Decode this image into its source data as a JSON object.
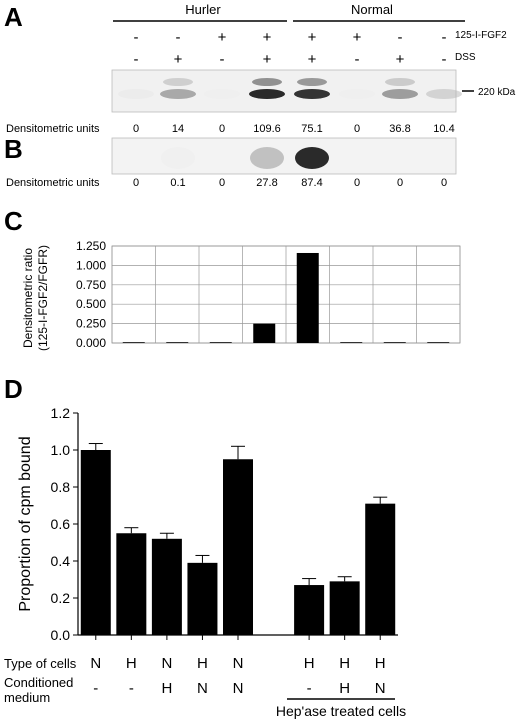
{
  "panelA": {
    "letter": "A",
    "group_hurler": "Hurler",
    "group_normal": "Normal",
    "row_fgf2": [
      "-",
      "-",
      "+",
      "+",
      "+",
      "+",
      "-",
      "-"
    ],
    "row_dss": [
      "-",
      "+",
      "-",
      "+",
      "+",
      "-",
      "+",
      "-"
    ],
    "label_fgf2": "125-I-FGF2",
    "label_dss": "DSS",
    "band_label": "220 kDa",
    "densitometric_label": "Densitometric units",
    "densitometric_values": [
      "0",
      "14",
      "0",
      "109.6",
      "75.1",
      "0",
      "36.8",
      "10.4"
    ],
    "band_intensity": [
      0.05,
      0.45,
      0.02,
      0.9,
      0.85,
      0.02,
      0.5,
      0.25
    ]
  },
  "panelB": {
    "letter": "B",
    "densitometric_label": "Densitometric units",
    "densitometric_values": [
      "0",
      "0.1",
      "0",
      "27.8",
      "87.4",
      "0",
      "0",
      "0"
    ],
    "band_intensity": [
      0,
      0.02,
      0,
      0.35,
      0.9,
      0,
      0,
      0
    ]
  },
  "panelC": {
    "letter": "C"
  },
  "panelD": {
    "letter": "D"
  },
  "chart_data": [
    {
      "type": "bar",
      "ylabel": "Densitometric ratio (125-I-FGF2/FGFR)",
      "ylabel_lines": [
        "Densitometric ratio",
        "(125-I-FGF2/FGFR)"
      ],
      "yticks": [
        "0.000",
        "0.250",
        "0.500",
        "0.750",
        "1.000",
        "1.250"
      ],
      "ylim": [
        0,
        1.25
      ],
      "values": [
        0,
        0.002,
        0,
        0.25,
        1.16,
        0,
        0,
        0.002
      ],
      "grid": true
    },
    {
      "type": "bar",
      "ylabel": "Proportion of cpm bound",
      "yticks": [
        "0.0",
        "0.2",
        "0.4",
        "0.6",
        "0.8",
        "1.0",
        "1.2"
      ],
      "ylim": [
        0,
        1.2
      ],
      "values": [
        1.0,
        0.55,
        0.52,
        0.39,
        0.95,
        0.27,
        0.29,
        0.71
      ],
      "errors": [
        0.035,
        0.03,
        0.03,
        0.04,
        0.07,
        0.035,
        0.025,
        0.035
      ],
      "slot_positions": [
        0,
        1,
        2,
        3,
        4,
        6,
        7,
        8
      ],
      "row1_label": "Type of cells",
      "row1": [
        "N",
        "H",
        "N",
        "H",
        "N",
        "H",
        "H",
        "H"
      ],
      "row2_label_lines": [
        "Conditioned",
        "medium"
      ],
      "row2": [
        "-",
        "-",
        "H",
        "N",
        "N",
        "-",
        "H",
        "N"
      ],
      "group_label": "Hep'ase treated cells"
    }
  ]
}
